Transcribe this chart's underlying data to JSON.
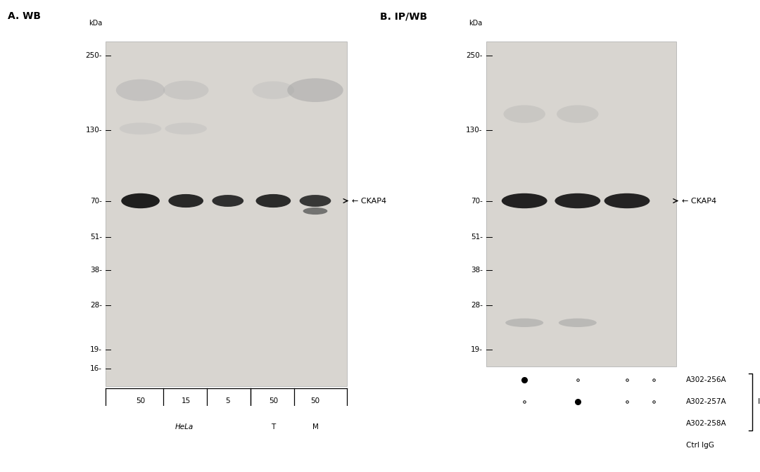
{
  "panel_A_title": "A. WB",
  "panel_B_title": "B. IP/WB",
  "gel_bg": "#d4d0cc",
  "gel_bg_light": "#e0ddd8",
  "white_bg": "#ffffff",
  "marker_labels_A": [
    "250-",
    "130-",
    "70-",
    "51-",
    "38-",
    "28-",
    "19-",
    "16-"
  ],
  "marker_labels_B": [
    "250-",
    "130-",
    "70-",
    "51-",
    "38-",
    "28-",
    "19-"
  ],
  "kda_vals_A": [
    250,
    130,
    70,
    51,
    38,
    28,
    19,
    16
  ],
  "kda_vals_B": [
    250,
    130,
    70,
    51,
    38,
    28,
    19
  ],
  "kda_label": "kDa",
  "panel_A_cols": [
    "50",
    "15",
    "5",
    "50",
    "50"
  ],
  "ckap4_label": "← CKAP4",
  "ip_label": "IP",
  "antibody_rows": [
    {
      "label": "A302-256A",
      "dots": [
        true,
        false,
        false,
        false
      ]
    },
    {
      "label": "A302-257A",
      "dots": [
        false,
        true,
        false,
        false
      ]
    },
    {
      "label": "A302-258A",
      "dots": [
        false,
        false,
        true,
        false
      ]
    },
    {
      "label": "Ctrl IgG",
      "dots": [
        false,
        false,
        false,
        true
      ]
    }
  ],
  "font_size_title": 10,
  "font_size_marker": 7.5,
  "font_size_table": 7.5,
  "font_size_annot": 8
}
